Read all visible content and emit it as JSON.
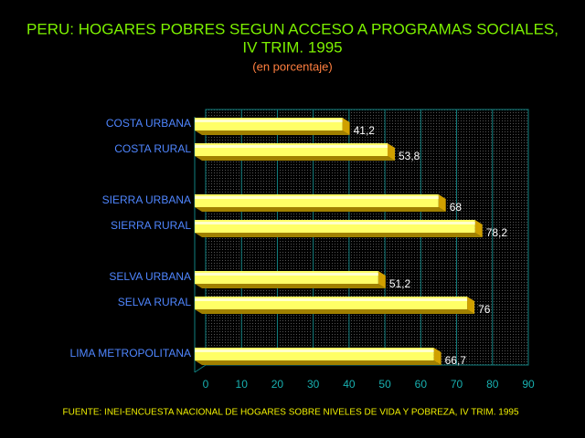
{
  "chart_data": {
    "type": "bar",
    "orientation": "horizontal",
    "title": [
      "PERU: HOGARES POBRES SEGUN ACCESO A PROGRAMAS SOCIALES,",
      "IV TRIM. 1995"
    ],
    "subtitle": "(en porcentaje)",
    "source": "FUENTE: INEI-ENCUESTA NACIONAL DE HOGARES SOBRE NIVELES DE VIDA Y POBREZA, IV TRIM. 1995",
    "categories": [
      "COSTA URBANA",
      "COSTA RURAL",
      null,
      "SIERRA URBANA",
      "SIERRA RURAL",
      null,
      "SELVA URBANA",
      "SELVA RURAL",
      null,
      "LIMA METROPOLITANA"
    ],
    "values": [
      41.2,
      53.8,
      null,
      68,
      78.2,
      null,
      51.2,
      76,
      null,
      66.7
    ],
    "value_labels": [
      "41,2",
      "53,8",
      null,
      "68",
      "78,2",
      null,
      "51,2",
      "76",
      null,
      "66,7"
    ],
    "color": "#ffff66",
    "xlim": [
      0,
      90
    ],
    "xticks": [
      0,
      10,
      20,
      30,
      40,
      50,
      60,
      70,
      80,
      90
    ],
    "grid": true
  }
}
